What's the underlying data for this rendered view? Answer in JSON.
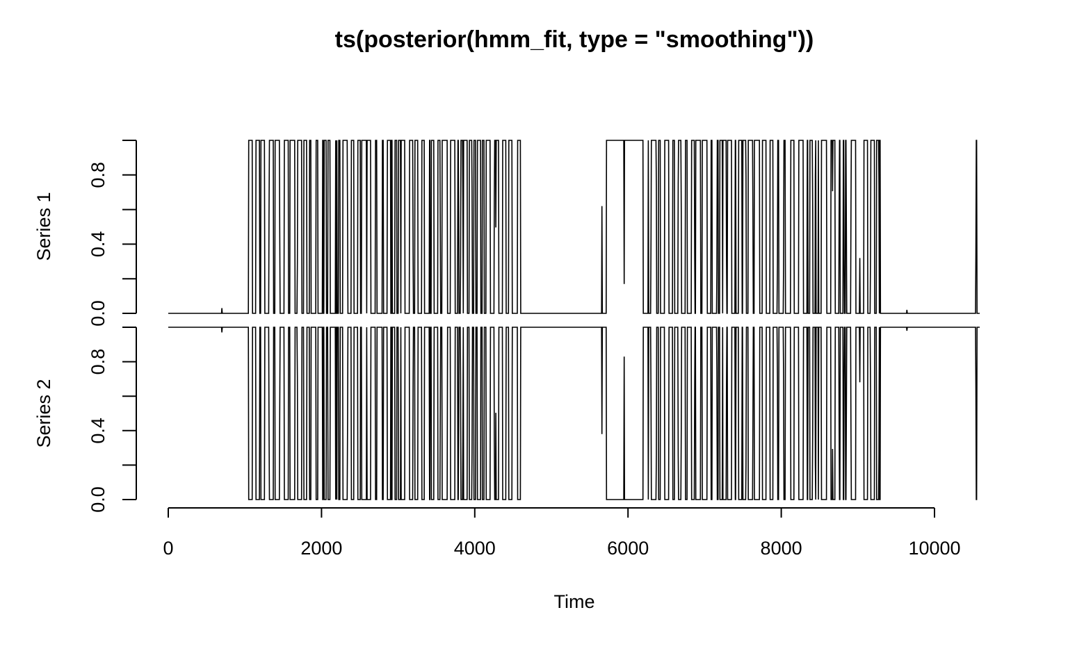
{
  "chart_data": {
    "type": "line",
    "title": "ts(posterior(hmm_fit, type = \"smoothing\"))",
    "xlabel": "Time",
    "xlim": [
      0,
      10600
    ],
    "x_ticks": [
      0,
      2000,
      4000,
      6000,
      8000,
      10000
    ],
    "x_tick_labels": [
      "0",
      "2000",
      "4000",
      "6000",
      "8000",
      "10000"
    ],
    "y_ticks": [
      0.0,
      0.4,
      0.8
    ],
    "y_tick_labels": [
      "0.0",
      "0.4",
      "0.8"
    ],
    "ylim": [
      0,
      1
    ],
    "grid": false,
    "legend": "none",
    "panels": [
      {
        "ylabel": "Series 1"
      },
      {
        "ylabel": "Series 2"
      }
    ],
    "series": [
      {
        "name": "Series 1",
        "regimes": [
          {
            "x": [
              0,
              1050
            ],
            "value": 0
          },
          {
            "x": [
              1050,
              4600
            ],
            "value": "switching"
          },
          {
            "x": [
              4600,
              5720
            ],
            "value": 0
          },
          {
            "x": [
              5720,
              6200
            ],
            "value": 1
          },
          {
            "x": [
              6200,
              9300
            ],
            "value": "switching"
          },
          {
            "x": [
              9300,
              10540
            ],
            "value": 0
          },
          {
            "x": [
              10540,
              10590
            ],
            "value": "switching"
          }
        ],
        "spikes": [
          {
            "x": 700,
            "value": 0.03
          },
          {
            "x": 5660,
            "value": 0.62
          },
          {
            "x": 5950,
            "value": 0.17
          },
          {
            "x": 9640,
            "value": 0.02
          }
        ]
      },
      {
        "name": "Series 2",
        "complement_of": "Series 1"
      }
    ]
  }
}
